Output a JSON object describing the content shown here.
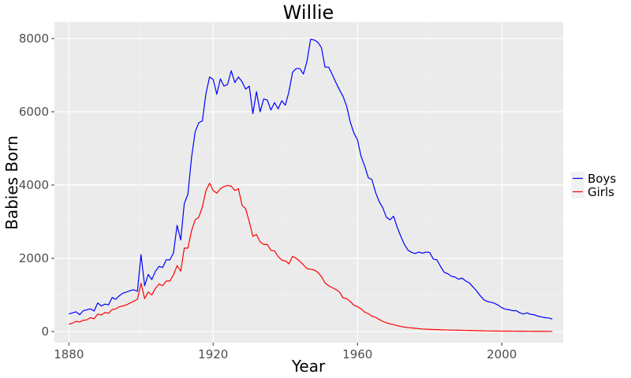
{
  "chart_data": {
    "type": "line",
    "title": "Willie",
    "xlabel": "Year",
    "ylabel": "Babies Born",
    "xlim": [
      1876,
      2017
    ],
    "ylim": [
      -300,
      8450
    ],
    "x_ticks": [
      "1880",
      "1920",
      "1960",
      "2000"
    ],
    "y_ticks": [
      "0",
      "2000",
      "4000",
      "6000",
      "8000"
    ],
    "grid": true,
    "legend_position": "right",
    "series": [
      {
        "name": "Boys",
        "color": "#0000ff",
        "points": [
          [
            1880,
            480
          ],
          [
            1882,
            540
          ],
          [
            1883,
            460
          ],
          [
            1884,
            570
          ],
          [
            1886,
            620
          ],
          [
            1887,
            560
          ],
          [
            1888,
            780
          ],
          [
            1889,
            700
          ],
          [
            1890,
            750
          ],
          [
            1891,
            730
          ],
          [
            1892,
            930
          ],
          [
            1893,
            880
          ],
          [
            1894,
            980
          ],
          [
            1895,
            1050
          ],
          [
            1896,
            1080
          ],
          [
            1897,
            1120
          ],
          [
            1898,
            1140
          ],
          [
            1899,
            1100
          ],
          [
            1900,
            2100
          ],
          [
            1901,
            1250
          ],
          [
            1902,
            1560
          ],
          [
            1903,
            1420
          ],
          [
            1904,
            1650
          ],
          [
            1905,
            1780
          ],
          [
            1906,
            1750
          ],
          [
            1907,
            1960
          ],
          [
            1908,
            1960
          ],
          [
            1909,
            2150
          ],
          [
            1910,
            2900
          ],
          [
            1911,
            2500
          ],
          [
            1912,
            3500
          ],
          [
            1913,
            3750
          ],
          [
            1914,
            4750
          ],
          [
            1915,
            5450
          ],
          [
            1916,
            5700
          ],
          [
            1917,
            5750
          ],
          [
            1918,
            6500
          ],
          [
            1919,
            6950
          ],
          [
            1920,
            6880
          ],
          [
            1921,
            6480
          ],
          [
            1922,
            6900
          ],
          [
            1923,
            6700
          ],
          [
            1924,
            6750
          ],
          [
            1925,
            7120
          ],
          [
            1926,
            6800
          ],
          [
            1927,
            6950
          ],
          [
            1928,
            6820
          ],
          [
            1929,
            6620
          ],
          [
            1930,
            6700
          ],
          [
            1931,
            5950
          ],
          [
            1932,
            6550
          ],
          [
            1933,
            6000
          ],
          [
            1934,
            6350
          ],
          [
            1935,
            6320
          ],
          [
            1936,
            6050
          ],
          [
            1937,
            6250
          ],
          [
            1938,
            6080
          ],
          [
            1939,
            6300
          ],
          [
            1940,
            6180
          ],
          [
            1941,
            6550
          ],
          [
            1942,
            7080
          ],
          [
            1943,
            7180
          ],
          [
            1944,
            7180
          ],
          [
            1945,
            7030
          ],
          [
            1946,
            7380
          ],
          [
            1947,
            7980
          ],
          [
            1948,
            7960
          ],
          [
            1949,
            7900
          ],
          [
            1950,
            7750
          ],
          [
            1951,
            7220
          ],
          [
            1952,
            7220
          ],
          [
            1953,
            7020
          ],
          [
            1954,
            6800
          ],
          [
            1955,
            6600
          ],
          [
            1956,
            6420
          ],
          [
            1957,
            6150
          ],
          [
            1958,
            5720
          ],
          [
            1959,
            5420
          ],
          [
            1960,
            5230
          ],
          [
            1961,
            4780
          ],
          [
            1962,
            4520
          ],
          [
            1963,
            4200
          ],
          [
            1964,
            4150
          ],
          [
            1965,
            3800
          ],
          [
            1966,
            3550
          ],
          [
            1967,
            3380
          ],
          [
            1968,
            3120
          ],
          [
            1969,
            3050
          ],
          [
            1970,
            3150
          ],
          [
            1971,
            2850
          ],
          [
            1972,
            2600
          ],
          [
            1973,
            2380
          ],
          [
            1974,
            2220
          ],
          [
            1975,
            2160
          ],
          [
            1976,
            2130
          ],
          [
            1977,
            2170
          ],
          [
            1978,
            2140
          ],
          [
            1979,
            2170
          ],
          [
            1980,
            2160
          ],
          [
            1981,
            1980
          ],
          [
            1982,
            1960
          ],
          [
            1983,
            1780
          ],
          [
            1984,
            1620
          ],
          [
            1985,
            1580
          ],
          [
            1986,
            1510
          ],
          [
            1987,
            1490
          ],
          [
            1988,
            1430
          ],
          [
            1989,
            1460
          ],
          [
            1990,
            1380
          ],
          [
            1991,
            1330
          ],
          [
            1992,
            1220
          ],
          [
            1993,
            1110
          ],
          [
            1994,
            980
          ],
          [
            1995,
            870
          ],
          [
            1996,
            820
          ],
          [
            1997,
            800
          ],
          [
            1998,
            770
          ],
          [
            1999,
            720
          ],
          [
            2000,
            650
          ],
          [
            2001,
            610
          ],
          [
            2002,
            600
          ],
          [
            2003,
            570
          ],
          [
            2004,
            570
          ],
          [
            2005,
            510
          ],
          [
            2006,
            480
          ],
          [
            2007,
            510
          ],
          [
            2008,
            470
          ],
          [
            2009,
            460
          ],
          [
            2010,
            420
          ],
          [
            2011,
            400
          ],
          [
            2012,
            380
          ],
          [
            2013,
            370
          ],
          [
            2014,
            340
          ]
        ]
      },
      {
        "name": "Girls",
        "color": "#ff0000",
        "points": [
          [
            1880,
            200
          ],
          [
            1881,
            230
          ],
          [
            1882,
            280
          ],
          [
            1883,
            260
          ],
          [
            1884,
            310
          ],
          [
            1885,
            320
          ],
          [
            1886,
            380
          ],
          [
            1887,
            350
          ],
          [
            1888,
            480
          ],
          [
            1889,
            450
          ],
          [
            1890,
            520
          ],
          [
            1891,
            500
          ],
          [
            1892,
            600
          ],
          [
            1893,
            620
          ],
          [
            1894,
            680
          ],
          [
            1895,
            700
          ],
          [
            1896,
            730
          ],
          [
            1897,
            780
          ],
          [
            1898,
            830
          ],
          [
            1899,
            880
          ],
          [
            1900,
            1320
          ],
          [
            1901,
            900
          ],
          [
            1902,
            1080
          ],
          [
            1903,
            1000
          ],
          [
            1904,
            1180
          ],
          [
            1905,
            1300
          ],
          [
            1906,
            1250
          ],
          [
            1907,
            1380
          ],
          [
            1908,
            1380
          ],
          [
            1909,
            1550
          ],
          [
            1910,
            1800
          ],
          [
            1911,
            1650
          ],
          [
            1912,
            2280
          ],
          [
            1913,
            2280
          ],
          [
            1914,
            2750
          ],
          [
            1915,
            3050
          ],
          [
            1916,
            3120
          ],
          [
            1917,
            3400
          ],
          [
            1918,
            3850
          ],
          [
            1919,
            4050
          ],
          [
            1920,
            3850
          ],
          [
            1921,
            3780
          ],
          [
            1922,
            3900
          ],
          [
            1923,
            3960
          ],
          [
            1924,
            3990
          ],
          [
            1925,
            3970
          ],
          [
            1926,
            3850
          ],
          [
            1927,
            3900
          ],
          [
            1928,
            3450
          ],
          [
            1929,
            3350
          ],
          [
            1930,
            3000
          ],
          [
            1931,
            2600
          ],
          [
            1932,
            2650
          ],
          [
            1933,
            2450
          ],
          [
            1934,
            2380
          ],
          [
            1935,
            2380
          ],
          [
            1936,
            2220
          ],
          [
            1937,
            2200
          ],
          [
            1938,
            2050
          ],
          [
            1939,
            1950
          ],
          [
            1940,
            1930
          ],
          [
            1941,
            1850
          ],
          [
            1942,
            2050
          ],
          [
            1943,
            2000
          ],
          [
            1944,
            1920
          ],
          [
            1945,
            1820
          ],
          [
            1946,
            1720
          ],
          [
            1947,
            1700
          ],
          [
            1948,
            1680
          ],
          [
            1949,
            1620
          ],
          [
            1950,
            1500
          ],
          [
            1951,
            1330
          ],
          [
            1952,
            1250
          ],
          [
            1953,
            1200
          ],
          [
            1954,
            1150
          ],
          [
            1955,
            1080
          ],
          [
            1956,
            920
          ],
          [
            1957,
            900
          ],
          [
            1958,
            820
          ],
          [
            1959,
            720
          ],
          [
            1960,
            680
          ],
          [
            1961,
            620
          ],
          [
            1962,
            530
          ],
          [
            1963,
            490
          ],
          [
            1964,
            420
          ],
          [
            1965,
            390
          ],
          [
            1966,
            330
          ],
          [
            1967,
            280
          ],
          [
            1968,
            240
          ],
          [
            1969,
            210
          ],
          [
            1970,
            190
          ],
          [
            1971,
            160
          ],
          [
            1972,
            140
          ],
          [
            1973,
            120
          ],
          [
            1974,
            110
          ],
          [
            1975,
            100
          ],
          [
            1976,
            90
          ],
          [
            1977,
            80
          ],
          [
            1978,
            70
          ],
          [
            1979,
            65
          ],
          [
            1980,
            60
          ],
          [
            1981,
            55
          ],
          [
            1982,
            55
          ],
          [
            1983,
            50
          ],
          [
            1984,
            45
          ],
          [
            1985,
            45
          ],
          [
            1986,
            40
          ],
          [
            1987,
            40
          ],
          [
            1988,
            38
          ],
          [
            1989,
            35
          ],
          [
            1990,
            32
          ],
          [
            1991,
            30
          ],
          [
            1992,
            28
          ],
          [
            1993,
            25
          ],
          [
            1994,
            22
          ],
          [
            1995,
            20
          ],
          [
            1996,
            18
          ],
          [
            1997,
            16
          ],
          [
            1998,
            15
          ],
          [
            1999,
            14
          ],
          [
            2000,
            13
          ],
          [
            2001,
            12
          ],
          [
            2002,
            11
          ],
          [
            2003,
            10
          ],
          [
            2004,
            10
          ],
          [
            2005,
            9
          ],
          [
            2006,
            9
          ],
          [
            2007,
            8
          ],
          [
            2008,
            8
          ],
          [
            2009,
            7
          ],
          [
            2010,
            7
          ],
          [
            2011,
            6
          ],
          [
            2012,
            6
          ],
          [
            2013,
            5
          ],
          [
            2014,
            5
          ]
        ]
      }
    ]
  }
}
